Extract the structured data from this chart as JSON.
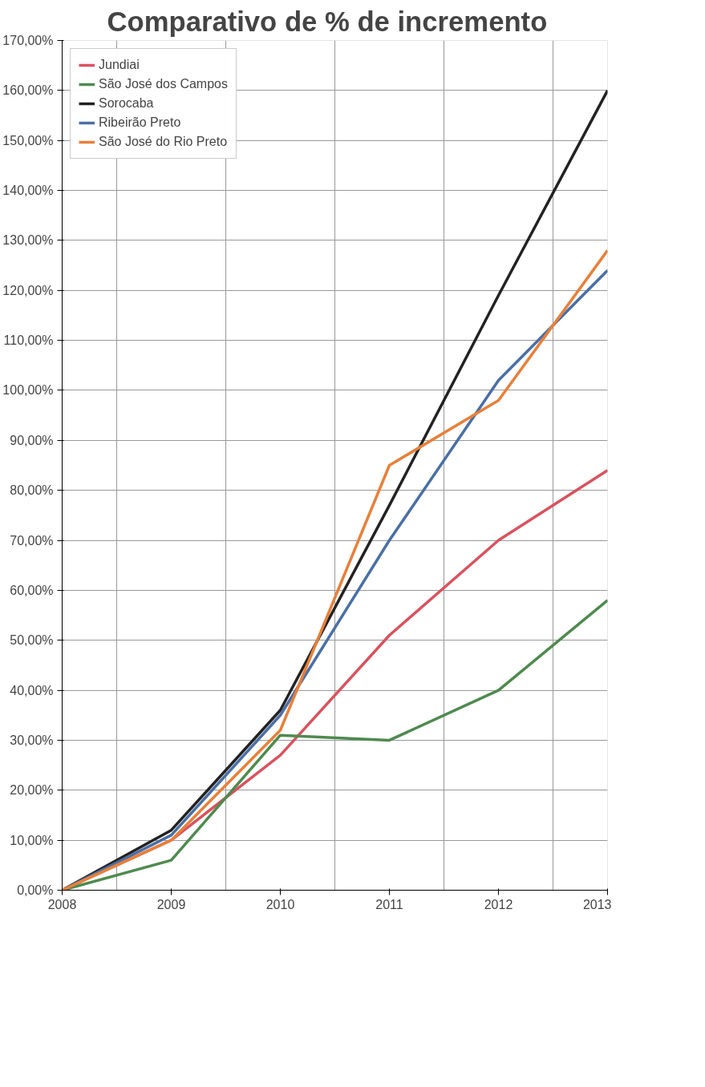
{
  "chart_data": {
    "type": "line",
    "title": "Comparativo de  %  de incremento",
    "categories": [
      "2008",
      "2009",
      "2010",
      "2011",
      "2012",
      "2013"
    ],
    "series": [
      {
        "name": "Jundiai",
        "color": "#d9525e",
        "values": [
          0,
          10,
          27,
          51,
          70,
          84
        ]
      },
      {
        "name": "São José dos Campos",
        "color": "#4e8a4e",
        "values": [
          0,
          6,
          31,
          30,
          40,
          58
        ]
      },
      {
        "name": "Sorocaba",
        "color": "#222222",
        "values": [
          0,
          12,
          36,
          77,
          119,
          160
        ]
      },
      {
        "name": "Ribeirão Preto",
        "color": "#4a6fa5",
        "values": [
          0,
          11,
          35,
          70,
          102,
          124
        ]
      },
      {
        "name": "São José do Rio Preto",
        "color": "#e8803a",
        "values": [
          0,
          10,
          32,
          85,
          98,
          128
        ]
      }
    ],
    "ylim": [
      0,
      170
    ],
    "yticks": [
      {
        "value": 0,
        "label": "0,00%"
      },
      {
        "value": 10,
        "label": "10,00%"
      },
      {
        "value": 20,
        "label": "20,00%"
      },
      {
        "value": 30,
        "label": "30,00%"
      },
      {
        "value": 40,
        "label": "40,00%"
      },
      {
        "value": 50,
        "label": "50,00%"
      },
      {
        "value": 60,
        "label": "60,00%"
      },
      {
        "value": 70,
        "label": "70,00%"
      },
      {
        "value": 80,
        "label": "80,00%"
      },
      {
        "value": 90,
        "label": "90,00%"
      },
      {
        "value": 100,
        "label": "100,00%"
      },
      {
        "value": 110,
        "label": "110,00%"
      },
      {
        "value": 120,
        "label": "120,00%"
      },
      {
        "value": 130,
        "label": "130,00%"
      },
      {
        "value": 140,
        "label": "140,00%"
      },
      {
        "value": 150,
        "label": "150,00%"
      },
      {
        "value": 160,
        "label": "160,00%"
      },
      {
        "value": 170,
        "label": "170,00%"
      }
    ],
    "grid": true,
    "legend": "top left",
    "marker": "none",
    "line_style": "solid"
  }
}
